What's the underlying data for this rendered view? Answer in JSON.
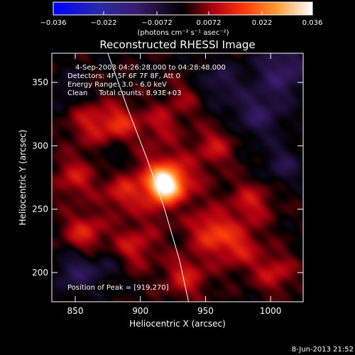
{
  "chart_data": {
    "type": "heatmap",
    "title": "Reconstructed RHESSI Image",
    "xlabel": "Heliocentric X (arcsec)",
    "ylabel": "Heliocentric Y (arcsec)",
    "xlim": [
      832,
      1025
    ],
    "ylim": [
      177,
      373
    ],
    "x_ticks": [
      850,
      900,
      950,
      1000
    ],
    "y_ticks": [
      200,
      250,
      300,
      350
    ],
    "colorbar": {
      "min": -0.036,
      "max": 0.036,
      "tick_values": [
        -0.036,
        -0.022,
        -0.0072,
        0.0072,
        0.022,
        0.036
      ],
      "tick_labels": [
        "-0.036",
        "-0.022",
        "-0.0072",
        "0.0072",
        "0.022",
        "0.036"
      ],
      "unit_label": "(photons cm⁻² s⁻¹ asec⁻²)"
    },
    "annotations": [
      "4-Sep-2003 04:26:28.000 to 04:28:48.000",
      "Detectors: 4F 5F 6F 7F 8F, Att 0",
      "Energy Range: 3.0 - 6.0 keV",
      "Clean     Total counts: 8.93E+03"
    ],
    "peak_label": "Position of Peak = [919,270]",
    "peak": {
      "x": 919,
      "y": 270,
      "value": 0.036
    },
    "limb_line": [
      [
        875,
        373
      ],
      [
        890,
        330
      ],
      [
        905,
        290
      ],
      [
        918,
        252
      ],
      [
        930,
        210
      ],
      [
        937,
        177
      ]
    ],
    "emission_sources": [
      {
        "x": 919,
        "y": 270,
        "amp": 0.03,
        "sigma": 9
      },
      {
        "x": 919,
        "y": 270,
        "amp": 0.012,
        "sigma": 20
      },
      {
        "x": 862,
        "y": 318,
        "amp": 0.01,
        "sigma": 12
      },
      {
        "x": 885,
        "y": 318,
        "amp": 0.012,
        "sigma": 10
      },
      {
        "x": 850,
        "y": 275,
        "amp": 0.01,
        "sigma": 12
      },
      {
        "x": 885,
        "y": 262,
        "amp": 0.009,
        "sigma": 10
      },
      {
        "x": 857,
        "y": 232,
        "amp": 0.012,
        "sigma": 11
      },
      {
        "x": 895,
        "y": 220,
        "amp": 0.01,
        "sigma": 12
      },
      {
        "x": 935,
        "y": 197,
        "amp": 0.011,
        "sigma": 12
      },
      {
        "x": 955,
        "y": 232,
        "amp": 0.014,
        "sigma": 11
      },
      {
        "x": 985,
        "y": 255,
        "amp": 0.01,
        "sigma": 12
      },
      {
        "x": 975,
        "y": 220,
        "amp": 0.011,
        "sigma": 12
      },
      {
        "x": 958,
        "y": 300,
        "amp": 0.009,
        "sigma": 11
      },
      {
        "x": 935,
        "y": 338,
        "amp": 0.006,
        "sigma": 11
      },
      {
        "x": 1003,
        "y": 200,
        "amp": 0.01,
        "sigma": 11
      },
      {
        "x": 915,
        "y": 318,
        "amp": 0.008,
        "sigma": 10
      },
      {
        "x": 990,
        "y": 325,
        "amp": -0.01,
        "sigma": 14
      },
      {
        "x": 1010,
        "y": 360,
        "amp": -0.012,
        "sigma": 15
      },
      {
        "x": 960,
        "y": 350,
        "amp": -0.008,
        "sigma": 12
      },
      {
        "x": 850,
        "y": 200,
        "amp": -0.01,
        "sigma": 11
      },
      {
        "x": 1010,
        "y": 285,
        "amp": -0.008,
        "sigma": 11
      },
      {
        "x": 880,
        "y": 290,
        "amp": -0.005,
        "sigma": 8
      },
      {
        "x": 930,
        "y": 250,
        "amp": -0.004,
        "sigma": 6
      },
      {
        "x": 875,
        "y": 205,
        "amp": -0.006,
        "sigma": 9
      },
      {
        "x": 845,
        "y": 345,
        "amp": -0.005,
        "sigma": 10
      }
    ],
    "timestamp": "8-Jun-2013 21:52",
    "grid": false
  }
}
